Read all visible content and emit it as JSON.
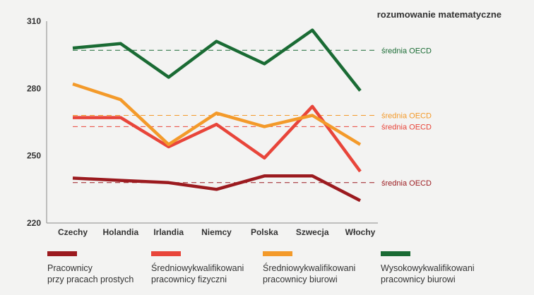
{
  "chart_data": {
    "type": "line",
    "title": "rozumowanie matematyczne",
    "categories": [
      "Czechy",
      "Holandia",
      "Irlandia",
      "Niemcy",
      "Polska",
      "Szwecja",
      "Włochy"
    ],
    "ylim": [
      220,
      310
    ],
    "yticks": [
      220,
      250,
      280,
      310
    ],
    "grid": false,
    "legend_position": "bottom",
    "series": [
      {
        "name": "Pracownicy przy pracach prostych",
        "color": "#9b1a1f",
        "values": [
          240,
          239,
          238,
          235,
          241,
          241,
          230
        ],
        "oecd_avg": 238
      },
      {
        "name": "Średniowykwalifikowani pracownicy fizyczni",
        "color": "#e8453a",
        "values": [
          267,
          267,
          254,
          264,
          249,
          272,
          243
        ],
        "oecd_avg": 263
      },
      {
        "name": "Średniowykwalifikowani pracownicy biurowi",
        "color": "#f39a2a",
        "values": [
          282,
          275,
          255,
          269,
          263,
          268,
          255
        ],
        "oecd_avg": 268
      },
      {
        "name": "Wysokowykwalifikowani pracownicy biurowi",
        "color": "#1a6b34",
        "values": [
          298,
          300,
          285,
          301,
          291,
          306,
          279
        ],
        "oecd_avg": 297
      }
    ],
    "reference_lines": [
      {
        "series_index": 3,
        "label": "średnia OECD",
        "value": 297
      },
      {
        "series_index": 2,
        "label": "średnia OECD",
        "value": 268
      },
      {
        "series_index": 1,
        "label": "średnia OECD",
        "value": 263
      },
      {
        "series_index": 0,
        "label": "średnia OECD",
        "value": 238
      }
    ]
  },
  "legend": [
    {
      "label": "Pracownicy\nprzy pracach prostych",
      "color": "#9b1a1f"
    },
    {
      "label": "Średniowykwalifikowani\npracownicy fizyczni",
      "color": "#e8453a"
    },
    {
      "label": "Średniowykwalifikowani\npracownicy biurowi",
      "color": "#f39a2a"
    },
    {
      "label": "Wysokowykwalifikowani\npracownicy biurowi",
      "color": "#1a6b34"
    }
  ]
}
